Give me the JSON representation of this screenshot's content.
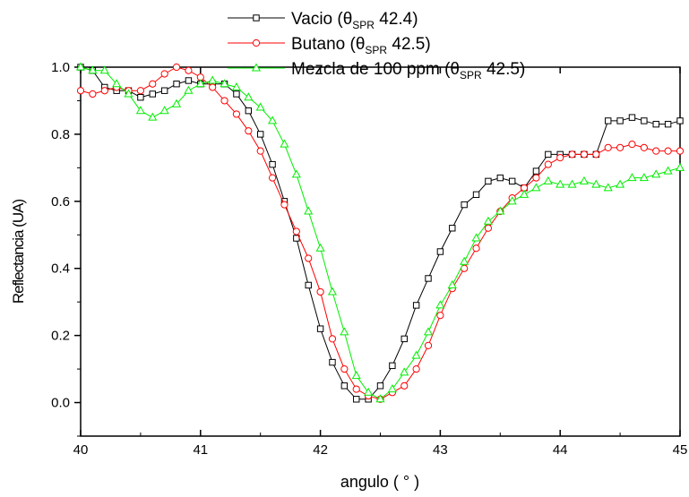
{
  "chart_data": {
    "type": "line",
    "xlabel": "angulo ( ° )",
    "ylabel": "Reflectancia (UA)",
    "xlim": [
      40,
      45
    ],
    "ylim": [
      -0.1,
      1.0
    ],
    "x_ticks": [
      "40",
      "41",
      "42",
      "43",
      "44",
      "45"
    ],
    "y_ticks": [
      "0.0",
      "0.2",
      "0.4",
      "0.6",
      "0.8",
      "1.0"
    ],
    "x_tick_values": [
      40,
      41,
      42,
      43,
      44,
      45
    ],
    "y_tick_values": [
      0.0,
      0.2,
      0.4,
      0.6,
      0.8,
      1.0
    ],
    "grid": false,
    "legend_position": "top",
    "series": [
      {
        "name": "Vacio",
        "legend_label": {
          "prefix": "Vacio (θ",
          "sub": "SPR",
          "suffix": " 42.4)"
        },
        "color": "#000000",
        "marker": "square",
        "x": [
          40.0,
          40.1,
          40.2,
          40.3,
          40.4,
          40.5,
          40.6,
          40.7,
          40.8,
          40.9,
          41.0,
          41.1,
          41.2,
          41.3,
          41.4,
          41.5,
          41.6,
          41.7,
          41.8,
          41.9,
          42.0,
          42.1,
          42.2,
          42.3,
          42.4,
          42.5,
          42.6,
          42.7,
          42.8,
          42.9,
          43.0,
          43.1,
          43.2,
          43.3,
          43.4,
          43.5,
          43.6,
          43.7,
          43.8,
          43.9,
          44.0,
          44.1,
          44.2,
          44.3,
          44.4,
          44.5,
          44.6,
          44.7,
          44.8,
          44.9,
          45.0
        ],
        "y": [
          1.0,
          0.99,
          0.94,
          0.93,
          0.93,
          0.91,
          0.92,
          0.93,
          0.95,
          0.96,
          0.95,
          0.95,
          0.95,
          0.92,
          0.87,
          0.8,
          0.71,
          0.6,
          0.49,
          0.35,
          0.22,
          0.12,
          0.05,
          0.01,
          0.01,
          0.05,
          0.11,
          0.19,
          0.29,
          0.37,
          0.45,
          0.52,
          0.59,
          0.62,
          0.66,
          0.67,
          0.66,
          0.64,
          0.69,
          0.74,
          0.74,
          0.74,
          0.74,
          0.74,
          0.84,
          0.84,
          0.85,
          0.84,
          0.83,
          0.83,
          0.84
        ]
      },
      {
        "name": "Butano",
        "legend_label": {
          "prefix": "Butano (θ",
          "sub": "SPR",
          "suffix": " 42.5)"
        },
        "color": "#ff0000",
        "marker": "circle",
        "x": [
          40.0,
          40.1,
          40.2,
          40.3,
          40.4,
          40.5,
          40.6,
          40.7,
          40.8,
          40.9,
          41.0,
          41.1,
          41.2,
          41.3,
          41.4,
          41.5,
          41.6,
          41.7,
          41.8,
          41.9,
          42.0,
          42.1,
          42.2,
          42.3,
          42.4,
          42.5,
          42.6,
          42.7,
          42.8,
          42.9,
          43.0,
          43.1,
          43.2,
          43.3,
          43.4,
          43.5,
          43.6,
          43.7,
          43.8,
          43.9,
          44.0,
          44.1,
          44.2,
          44.3,
          44.4,
          44.5,
          44.6,
          44.7,
          44.8,
          44.9,
          45.0
        ],
        "y": [
          0.93,
          0.92,
          0.93,
          0.94,
          0.93,
          0.93,
          0.95,
          0.98,
          1.0,
          0.99,
          0.97,
          0.94,
          0.9,
          0.86,
          0.81,
          0.75,
          0.67,
          0.59,
          0.51,
          0.43,
          0.33,
          0.19,
          0.1,
          0.04,
          0.02,
          0.01,
          0.03,
          0.05,
          0.1,
          0.17,
          0.26,
          0.34,
          0.4,
          0.46,
          0.52,
          0.57,
          0.61,
          0.64,
          0.67,
          0.71,
          0.73,
          0.74,
          0.74,
          0.74,
          0.76,
          0.76,
          0.77,
          0.76,
          0.75,
          0.75,
          0.75
        ]
      },
      {
        "name": "Mezcla de 100 ppm",
        "legend_label": {
          "prefix": "Mezcla de 100 ppm (θ",
          "sub": "SPR",
          "suffix": " 42.5)"
        },
        "color": "#00ee00",
        "marker": "triangle",
        "x": [
          40.0,
          40.1,
          40.2,
          40.3,
          40.4,
          40.5,
          40.6,
          40.7,
          40.8,
          40.9,
          41.0,
          41.1,
          41.2,
          41.3,
          41.4,
          41.5,
          41.6,
          41.7,
          41.8,
          41.9,
          42.0,
          42.1,
          42.2,
          42.3,
          42.4,
          42.5,
          42.6,
          42.7,
          42.8,
          42.9,
          43.0,
          43.1,
          43.2,
          43.3,
          43.4,
          43.5,
          43.6,
          43.7,
          43.8,
          43.9,
          44.0,
          44.1,
          44.2,
          44.3,
          44.4,
          44.5,
          44.6,
          44.7,
          44.8,
          44.9,
          45.0
        ],
        "y": [
          1.0,
          0.99,
          0.99,
          0.95,
          0.92,
          0.87,
          0.85,
          0.87,
          0.89,
          0.93,
          0.95,
          0.96,
          0.95,
          0.94,
          0.91,
          0.88,
          0.84,
          0.77,
          0.68,
          0.57,
          0.46,
          0.33,
          0.21,
          0.08,
          0.03,
          0.01,
          0.04,
          0.09,
          0.14,
          0.21,
          0.29,
          0.35,
          0.42,
          0.49,
          0.54,
          0.57,
          0.6,
          0.62,
          0.64,
          0.66,
          0.65,
          0.65,
          0.66,
          0.65,
          0.64,
          0.65,
          0.67,
          0.67,
          0.68,
          0.69,
          0.7
        ]
      }
    ]
  }
}
